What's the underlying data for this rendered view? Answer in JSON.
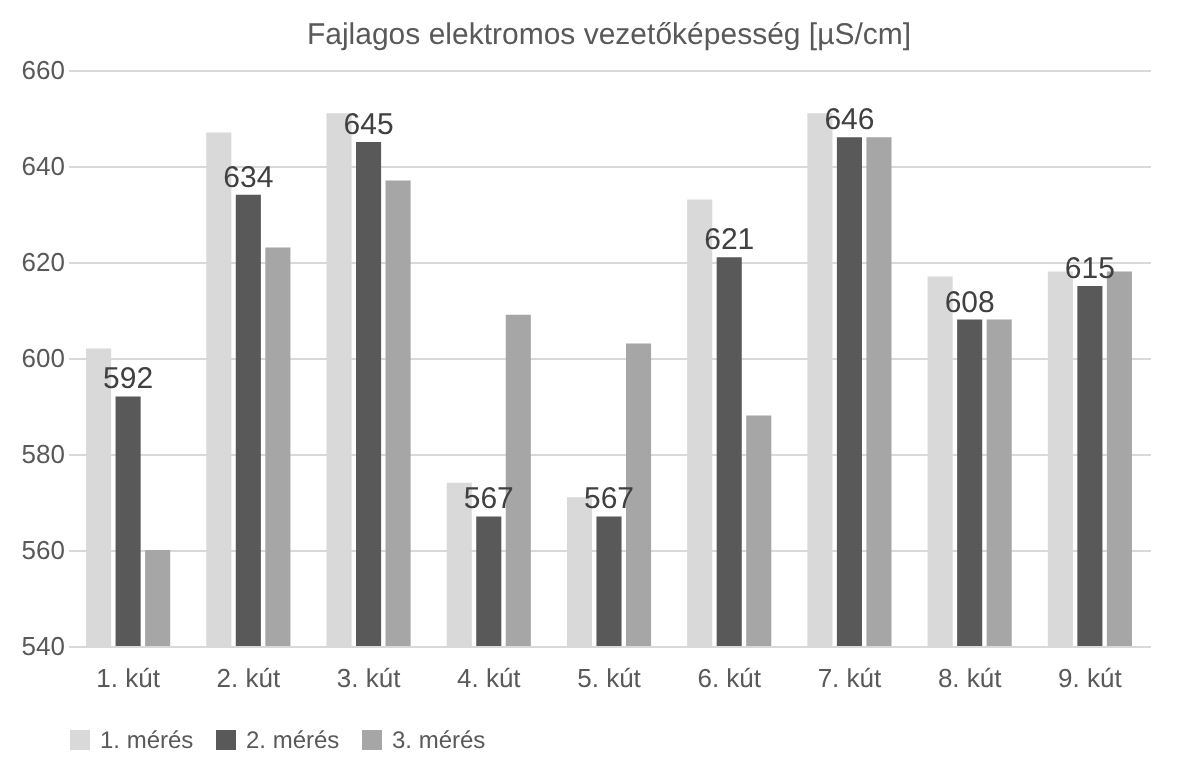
{
  "chart_data": {
    "type": "bar",
    "title": "Fajlagos elektromos vezetőképesség [µS/cm]",
    "categories": [
      "1. kút",
      "2. kút",
      "3. kút",
      "4. kút",
      "5. kút",
      "6. kút",
      "7. kút",
      "8. kút",
      "9. kút"
    ],
    "series": [
      {
        "name": "1. mérés",
        "color": "#d9d9d9",
        "values": [
          602,
          647,
          651,
          574,
          571,
          633,
          651,
          617,
          618
        ]
      },
      {
        "name": "2. mérés",
        "color": "#595959",
        "values": [
          592,
          634,
          645,
          567,
          567,
          621,
          646,
          608,
          615
        ],
        "value_labels": [
          "592",
          "634",
          "645",
          "567",
          "567",
          "621",
          "646",
          "608",
          "615"
        ]
      },
      {
        "name": "3. mérés",
        "color": "#a6a6a6",
        "values": [
          560,
          623,
          637,
          609,
          603,
          588,
          646,
          608,
          618
        ]
      }
    ],
    "ylim": [
      540,
      660
    ],
    "yticks": [
      540,
      560,
      580,
      600,
      620,
      640,
      660
    ],
    "grid": "y",
    "legend": "bottom"
  }
}
